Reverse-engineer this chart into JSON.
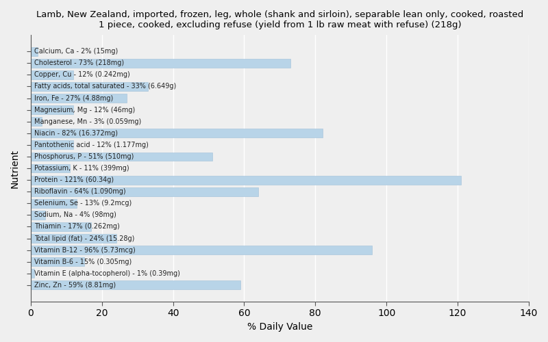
{
  "title": "Lamb, New Zealand, imported, frozen, leg, whole (shank and sirloin), separable lean only, cooked, roasted\n1 piece, cooked, excluding refuse (yield from 1 lb raw meat with refuse) (218g)",
  "xlabel": "% Daily Value",
  "ylabel": "Nutrient",
  "bar_color": "#b8d4e8",
  "bar_edge_color": "#a0bfd8",
  "background_color": "#efefef",
  "xlim": [
    0,
    140
  ],
  "xticks": [
    0,
    20,
    40,
    60,
    80,
    100,
    120,
    140
  ],
  "nutrients": [
    "Calcium, Ca - 2% (15mg)",
    "Cholesterol - 73% (218mg)",
    "Copper, Cu - 12% (0.242mg)",
    "Fatty acids, total saturated - 33% (6.649g)",
    "Iron, Fe - 27% (4.88mg)",
    "Magnesium, Mg - 12% (46mg)",
    "Manganese, Mn - 3% (0.059mg)",
    "Niacin - 82% (16.372mg)",
    "Pantothenic acid - 12% (1.177mg)",
    "Phosphorus, P - 51% (510mg)",
    "Potassium, K - 11% (399mg)",
    "Protein - 121% (60.34g)",
    "Riboflavin - 64% (1.090mg)",
    "Selenium, Se - 13% (9.2mcg)",
    "Sodium, Na - 4% (98mg)",
    "Thiamin - 17% (0.262mg)",
    "Total lipid (fat) - 24% (15.28g)",
    "Vitamin B-12 - 96% (5.73mcg)",
    "Vitamin B-6 - 15% (0.305mg)",
    "Vitamin E (alpha-tocopherol) - 1% (0.39mg)",
    "Zinc, Zn - 59% (8.81mg)"
  ],
  "values": [
    2,
    73,
    12,
    33,
    27,
    12,
    3,
    82,
    12,
    51,
    11,
    121,
    64,
    13,
    4,
    17,
    24,
    96,
    15,
    1,
    59
  ],
  "label_fontsize": 7.0,
  "label_color": "#222222",
  "title_fontsize": 9.5,
  "xlabel_fontsize": 10,
  "ylabel_fontsize": 10,
  "grid_color": "#ffffff",
  "tick_color": "#555555"
}
